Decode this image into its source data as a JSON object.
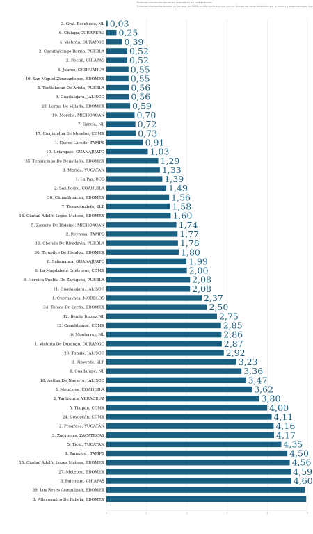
{
  "header": {
    "line1": "Entornos electorales donde se competirán en su mes fuerte",
    "line2": "Entornos electorales buenos en las que, en 2021, la diferencia entre el primer tiempo de votos obtenidos por el primer y segundo lugar fue menor a 5 puntos"
  },
  "chart_data": {
    "type": "bar",
    "orientation": "horizontal",
    "categories": [
      "3. Gral. Escobedo, NL",
      "6. Chilapa,GUERRERO",
      "4. Victoria, DURANGO",
      "2. Cuautlalcingo Barrio, PUEBLA",
      "2. Rochil, CHIAPAS",
      "4. Juarez, CHIHUAHUA",
      "40. San Miguel Zinacantepec, EDOMEX",
      "5. Teotlalucan De Arista, PUEBLA",
      "9. Guadalajara, JALISCO",
      "23. Lerma De Villada, EDOMEX",
      "10. Morelia, MICHOACAN",
      "7. García, NL",
      "17. Coajimalpa De Morelos, CDMX",
      "1. Nuevo Laredo, TAMPS",
      "10. Uriangato, GUANAJUATO",
      "35. Tenancingo De Degollado, EDOMEX",
      "3. Merida, YUCATÁN",
      "1. La Paz, BCS",
      "2. San Pedro, COAHUILA",
      "30. Chimalhuacan, EDOMEX",
      "7. Tenancinabde, SLP",
      "14. Ciudad Adolfo Lopez Mateos, EDOMEX",
      "5. Zamora De Hidalgo, MICHOACÁN",
      "2. Reynosa, TAMPS",
      "10. Cholula De Rivadavia, PUEBLA",
      "36. Tejupilco De Hidalgo, EDOMEX",
      "8. Salamanca, GUANAJUATO",
      "6. La Magdalena Contreras, CDMX",
      "9. Heroica Puebla De Zaragoza, PUEBLA",
      "11. Guadalajara, JALISCO",
      "1. Cuernavaca, MORELOS",
      "34. Toluca De Lerdo, EDOMEX",
      "12. Benito Juarez,NL",
      "12. Cuauhtemoc, CDMX",
      "6. Monterrey, NL",
      "1. Victoria De Durango, DURANGO",
      "20. Tonala, JALISCO",
      "3. Rioverde, SLP",
      "8. Guadalupe, NL",
      "18. Autlan De Navarro, JALISCO",
      "3. Monclova, COAHUILA",
      "2. Tantoyuca, VERACRUZ",
      "5. Tlalpan, CDMX",
      "24. Coyoacán, CDMX",
      "2. Progreso, YUCATÁN",
      "3. Zacatecas, ZACATECAS",
      "5. Ticul, YUCATAN",
      "8. Tampico , TAMPS",
      "15. Ciudad Adolfo Lopez Mateos, EDOMEX",
      "27. Metepec, EDOMEX",
      "3. Palenque, CHIAPAS",
      "39. Los Reyes Acaquilpan, EDOMEX",
      "3. Atlacomulco De Fabela, EDOMEX"
    ],
    "values": [
      0.03,
      0.25,
      0.39,
      0.52,
      0.52,
      0.55,
      0.55,
      0.56,
      0.56,
      0.59,
      0.7,
      0.72,
      0.73,
      0.91,
      1.03,
      1.29,
      1.33,
      1.39,
      1.49,
      1.56,
      1.58,
      1.6,
      1.74,
      1.77,
      1.78,
      1.8,
      1.99,
      2.0,
      2.08,
      2.08,
      2.37,
      2.5,
      2.75,
      2.85,
      2.86,
      2.87,
      2.92,
      3.23,
      3.36,
      3.47,
      3.62,
      3.8,
      4.0,
      4.11,
      4.16,
      4.17,
      4.35,
      4.5,
      4.56,
      4.59,
      4.6,
      4.93,
      4.97
    ],
    "value_labels": [
      "0,03",
      "0,25",
      "0,39",
      "0,52",
      "0,52",
      "0,55",
      "0,55",
      "0,56",
      "0,56",
      "0,59",
      "0,70",
      "0,72",
      "0,73",
      "0,91",
      "1,03",
      "1,29",
      "1,33",
      "1,39",
      "1,49",
      "1,56",
      "1,58",
      "1,60",
      "1,74",
      "1,77",
      "1,78",
      "1,80",
      "1,99",
      "2,00",
      "2,08",
      "2,08",
      "2,37",
      "2,50",
      "2,75",
      "2,85",
      "2,86",
      "2,87",
      "2,92",
      "3,23",
      "3,36",
      "3,47",
      "3,62",
      "3,80",
      "4,00",
      "4,11",
      "4,16",
      "4,17",
      "4,35",
      "4,50",
      "4,56",
      "4,59",
      "4,60",
      "",
      ""
    ],
    "xlim": [
      0,
      5
    ],
    "x_ticks": [
      0,
      1,
      2,
      3,
      4,
      5
    ],
    "grid": true,
    "bar_color": "#1a5f7f",
    "label_color": "#1e6383"
  }
}
